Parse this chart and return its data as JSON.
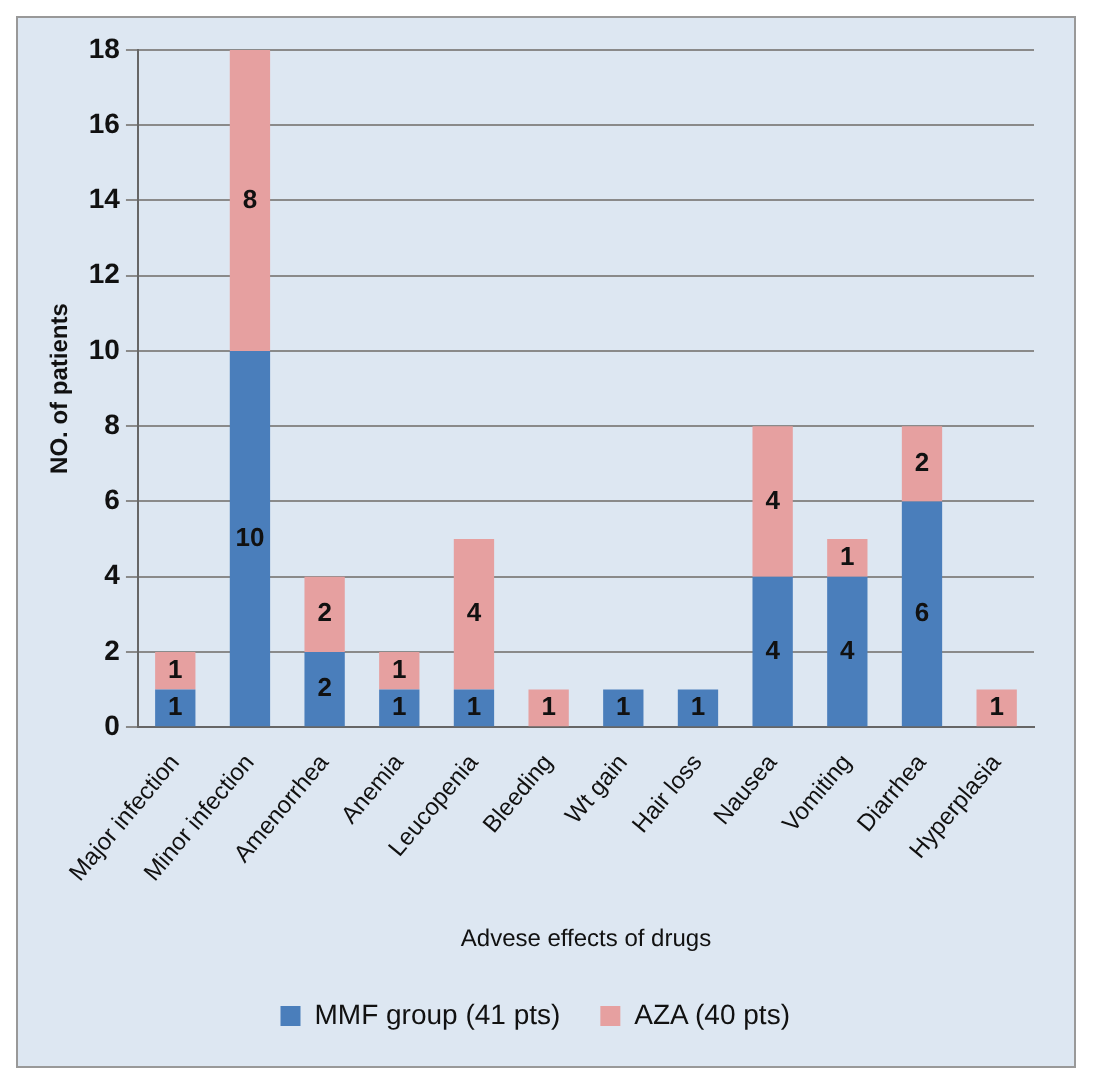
{
  "chart_data": {
    "type": "bar",
    "stacked": true,
    "xlabel": "Advese effects of drugs",
    "ylabel": "NO. of patients",
    "categories": [
      "Major infection",
      "Minor infection",
      "Amenorrhea",
      "Anemia",
      "Leucopenia",
      "Bleeding",
      "Wt gain",
      "Hair loss",
      "Nausea",
      "Vomiting",
      "Diarrhea",
      "Hyperplasia"
    ],
    "series": [
      {
        "name": "MMF group (41 pts)",
        "color": "#4a7ebb",
        "values": [
          1,
          10,
          2,
          1,
          1,
          0,
          1,
          1,
          4,
          4,
          6,
          0
        ],
        "value_labels": [
          "1",
          "10",
          "2",
          "1",
          "1",
          null,
          "1",
          "1",
          "4",
          "4",
          "6",
          null
        ]
      },
      {
        "name": "AZA (40 pts)",
        "color": "#e6a0a0",
        "values": [
          1,
          8,
          2,
          1,
          4,
          1,
          0,
          0,
          4,
          1,
          2,
          1
        ],
        "value_labels": [
          "1",
          "8",
          "2",
          "1",
          "4",
          "1",
          null,
          null,
          "4",
          "1",
          "2",
          "1"
        ]
      }
    ],
    "ylim": [
      0,
      18
    ],
    "yticks": [
      0,
      2,
      4,
      6,
      8,
      10,
      12,
      14,
      16,
      18
    ],
    "grid": "y",
    "legend": "bottom"
  }
}
